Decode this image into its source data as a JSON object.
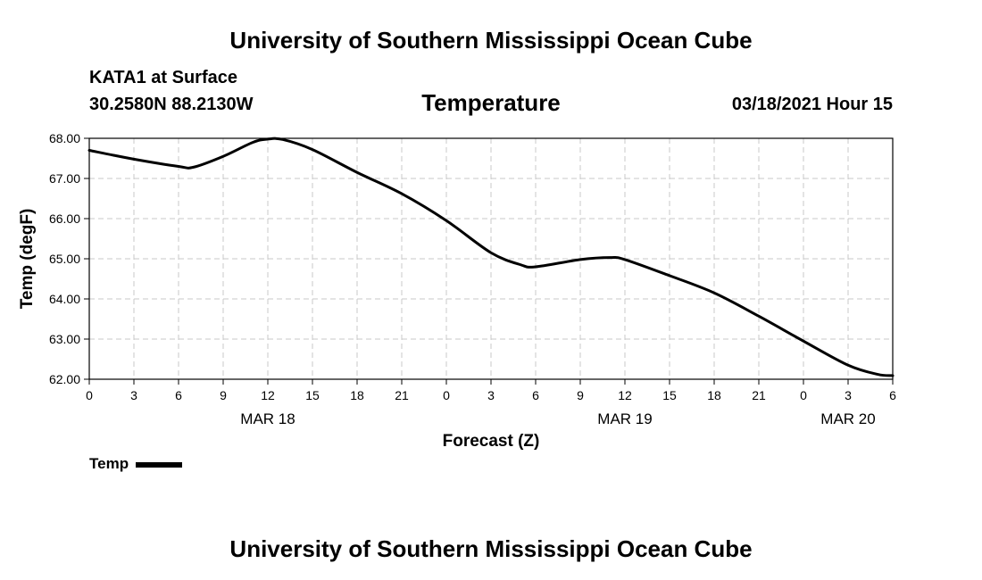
{
  "header": {
    "institution": "University of Southern Mississippi Ocean Cube",
    "station": "KATA1 at Surface",
    "coords": "30.2580N 88.2130W",
    "datetime": "03/18/2021 Hour 15"
  },
  "footer": {
    "institution": "University of Southern Mississippi Ocean Cube"
  },
  "chart_data": {
    "type": "line",
    "title": "Temperature",
    "xlabel": "Forecast (Z)",
    "ylabel": "Temp (degF)",
    "xlim": [
      0,
      54
    ],
    "ylim": [
      62,
      68
    ],
    "x_ticks": [
      0,
      3,
      6,
      9,
      12,
      15,
      18,
      21,
      24,
      27,
      30,
      33,
      36,
      39,
      42,
      45,
      48,
      51,
      54
    ],
    "x_tick_labels": [
      "0",
      "3",
      "6",
      "9",
      "12",
      "15",
      "18",
      "21",
      "0",
      "3",
      "6",
      "9",
      "12",
      "15",
      "18",
      "21",
      "0",
      "3",
      "6"
    ],
    "y_ticks": [
      62,
      63,
      64,
      65,
      66,
      67,
      68
    ],
    "y_tick_labels": [
      "62.00",
      "63.00",
      "64.00",
      "65.00",
      "66.00",
      "67.00",
      "68.00"
    ],
    "date_labels": [
      {
        "x": 12,
        "label": "MAR 18"
      },
      {
        "x": 36,
        "label": "MAR 19"
      },
      {
        "x": 51,
        "label": "MAR 20"
      }
    ],
    "grid": true,
    "legend": {
      "position": "bottom-left",
      "entries": [
        "Temp"
      ]
    },
    "series": [
      {
        "name": "Temp",
        "color": "#000000",
        "x": [
          0,
          3,
          6,
          7,
          9,
          11,
          12,
          13,
          15,
          18,
          21,
          24,
          27,
          29,
          30,
          33,
          35,
          36,
          39,
          42,
          45,
          48,
          51,
          53,
          54
        ],
        "y": [
          67.7,
          67.48,
          67.3,
          67.28,
          67.55,
          67.9,
          67.98,
          67.97,
          67.72,
          67.15,
          66.62,
          65.95,
          65.15,
          64.85,
          64.8,
          64.98,
          65.03,
          64.98,
          64.58,
          64.15,
          63.57,
          62.95,
          62.35,
          62.12,
          62.09
        ]
      }
    ]
  }
}
